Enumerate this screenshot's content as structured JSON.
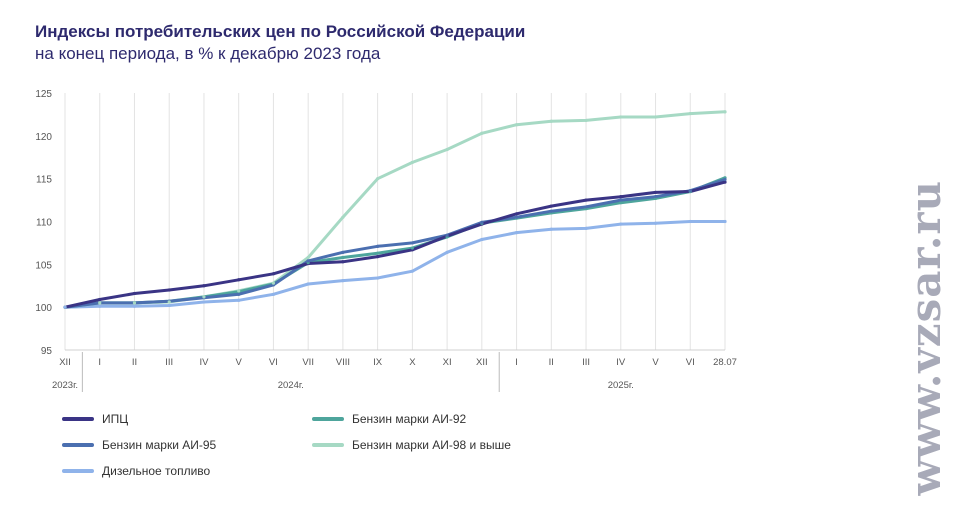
{
  "header": {
    "title": "Индексы потребительских цен по Российской Федерации",
    "subtitle": "на конец периода, в % к декабрю 2023 года"
  },
  "watermark": "www.vzsar.ru",
  "chart_data": {
    "type": "line",
    "title": "Индексы потребительских цен по Российской Федерации",
    "subtitle": "на конец периода, в % к декабрю 2023 года",
    "x": [
      "XII",
      "I",
      "II",
      "III",
      "IV",
      "V",
      "VI",
      "VII",
      "VIII",
      "IX",
      "X",
      "XI",
      "XII",
      "I",
      "II",
      "III",
      "IV",
      "V",
      "VI",
      "28.07"
    ],
    "x_groups": [
      {
        "label": "2023г.",
        "from": 0,
        "to": 0
      },
      {
        "label": "2024г.",
        "from": 1,
        "to": 12
      },
      {
        "label": "2025г.",
        "from": 13,
        "to": 19
      }
    ],
    "ylim": [
      95,
      125
    ],
    "yticks": [
      95,
      100,
      105,
      110,
      115,
      120,
      125
    ],
    "grid": "vertical",
    "legend_position": "bottom",
    "series": [
      {
        "name": "ИПЦ",
        "color": "#3a3485",
        "values": [
          100,
          100.9,
          101.6,
          102.0,
          102.5,
          103.2,
          103.9,
          105.1,
          105.3,
          105.9,
          106.7,
          108.3,
          109.7,
          110.9,
          111.8,
          112.5,
          112.9,
          113.4,
          113.5,
          114.6
        ]
      },
      {
        "name": "Бензин марки АИ-92",
        "color": "#4ea59c",
        "values": [
          100,
          100.5,
          100.5,
          100.7,
          101.2,
          101.8,
          102.7,
          105.2,
          105.8,
          106.3,
          106.9,
          108.2,
          109.8,
          110.4,
          111.0,
          111.5,
          112.2,
          112.7,
          113.5,
          115.1
        ]
      },
      {
        "name": "Бензин марки АИ-95",
        "color": "#4b6fb0",
        "values": [
          100,
          100.5,
          100.5,
          100.7,
          101.1,
          101.5,
          102.6,
          105.4,
          106.4,
          107.1,
          107.5,
          108.4,
          109.9,
          110.5,
          111.2,
          111.7,
          112.5,
          112.9,
          113.6,
          114.9
        ]
      },
      {
        "name": "Бензин марки АИ-98 и выше",
        "color": "#a6d9c4",
        "values": [
          100,
          100.5,
          100.5,
          100.6,
          101.2,
          101.9,
          102.8,
          105.8,
          110.5,
          115.0,
          116.9,
          118.4,
          120.3,
          121.3,
          121.7,
          121.8,
          122.2,
          122.2,
          122.6,
          122.8
        ]
      },
      {
        "name": "Дизельное топливо",
        "color": "#8fb3ea",
        "values": [
          100,
          100.1,
          100.1,
          100.2,
          100.6,
          100.8,
          101.5,
          102.7,
          103.1,
          103.4,
          104.2,
          106.4,
          107.9,
          108.7,
          109.1,
          109.2,
          109.7,
          109.8,
          110.0,
          110.0
        ]
      }
    ]
  }
}
